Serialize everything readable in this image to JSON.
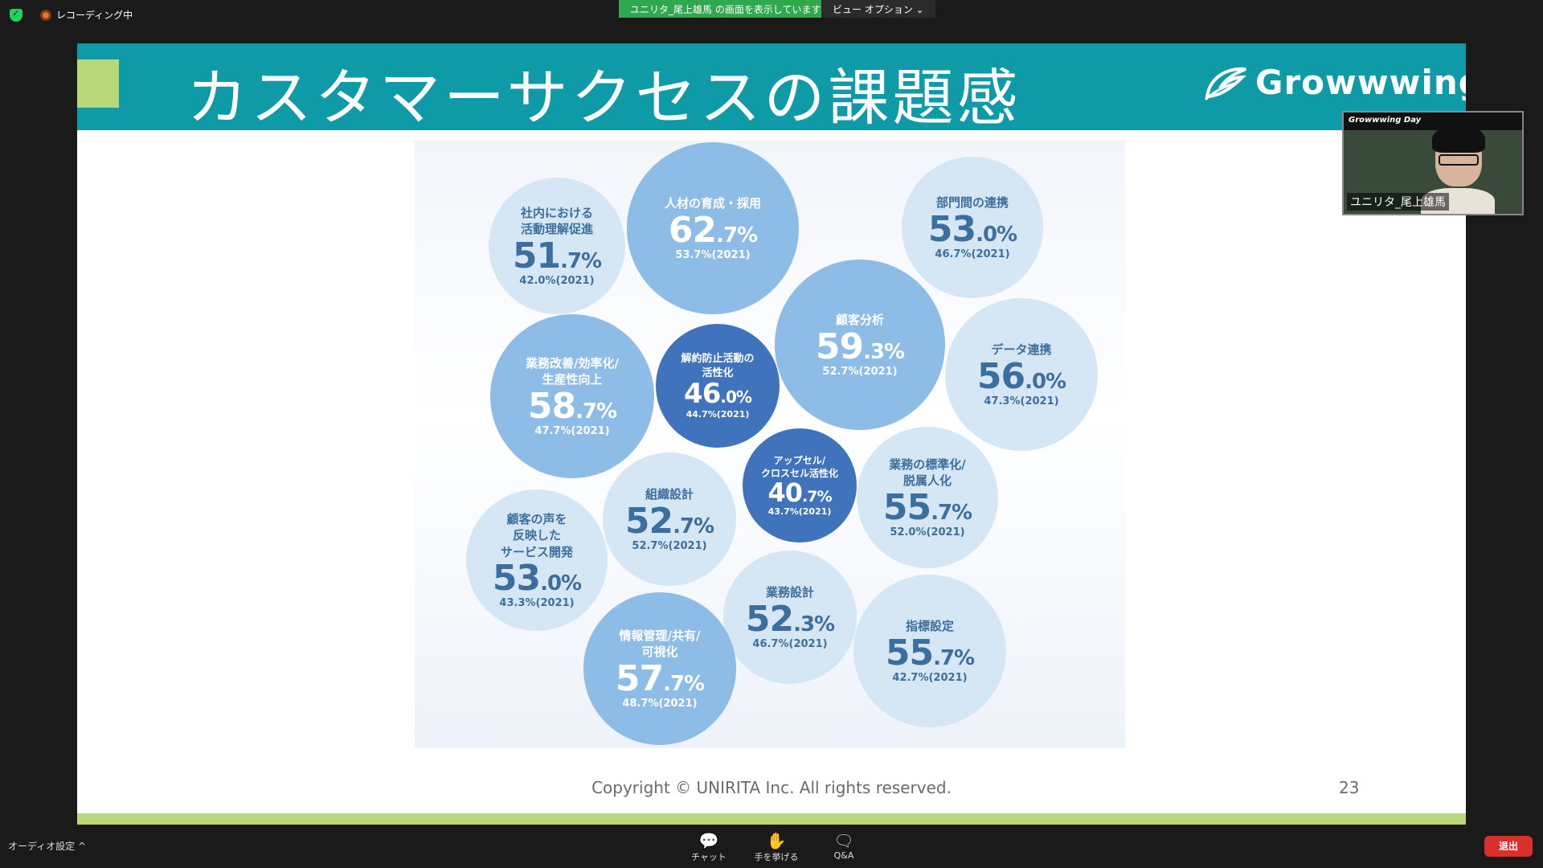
{
  "topbar": {
    "recording_label": "レコーディング中",
    "sharing_banner": "ユニリタ_尾上雄馬 の画面を表示しています",
    "view_options": "ビュー オプション ⌄"
  },
  "slide": {
    "title": "カスタマーサクセスの課題感",
    "logo_text": "Growwwing",
    "copyright": "Copyright © UNIRITA Inc. All rights reserved.",
    "page_number": "23",
    "colors": {
      "header": "#0f9aa8",
      "accent": "#b9d77b"
    }
  },
  "bubbles": [
    {
      "label": "社内における\n活動理解促進",
      "value_int": "51",
      "value_dec": ".7%",
      "prev": "42.0%(2021)"
    },
    {
      "label": "人材の育成・採用",
      "value_int": "62",
      "value_dec": ".7%",
      "prev": "53.7%(2021)"
    },
    {
      "label": "部門間の連携",
      "value_int": "53",
      "value_dec": ".0%",
      "prev": "46.7%(2021)"
    },
    {
      "label": "顧客分析",
      "value_int": "59",
      "value_dec": ".3%",
      "prev": "52.7%(2021)"
    },
    {
      "label": "データ連携",
      "value_int": "56",
      "value_dec": ".0%",
      "prev": "47.3%(2021)"
    },
    {
      "label": "業務改善/効率化/\n生産性向上",
      "value_int": "58",
      "value_dec": ".7%",
      "prev": "47.7%(2021)"
    },
    {
      "label": "解約防止活動の\n活性化",
      "value_int": "46",
      "value_dec": ".0%",
      "prev": "44.7%(2021)"
    },
    {
      "label": "アップセル/\nクロスセル活性化",
      "value_int": "40",
      "value_dec": ".7%",
      "prev": "43.7%(2021)"
    },
    {
      "label": "業務の標準化/\n脱属人化",
      "value_int": "55",
      "value_dec": ".7%",
      "prev": "52.0%(2021)"
    },
    {
      "label": "組織設計",
      "value_int": "52",
      "value_dec": ".7%",
      "prev": "52.7%(2021)"
    },
    {
      "label": "顧客の声を\n反映した\nサービス開発",
      "value_int": "53",
      "value_dec": ".0%",
      "prev": "43.3%(2021)"
    },
    {
      "label": "業務設計",
      "value_int": "52",
      "value_dec": ".3%",
      "prev": "46.7%(2021)"
    },
    {
      "label": "指標設定",
      "value_int": "55",
      "value_dec": ".7%",
      "prev": "42.7%(2021)"
    },
    {
      "label": "情報管理/共有/\n可視化",
      "value_int": "57",
      "value_dec": ".7%",
      "prev": "48.7%(2021)"
    }
  ],
  "video_tile": {
    "banner": "Growwwing Day",
    "participant_name": "ユニリタ_尾上雄馬"
  },
  "bottombar": {
    "audio_settings": "オーディオ設定 ^",
    "chat": "チャット",
    "raise_hand": "手を挙げる",
    "qa": "Q&A",
    "leave": "退出"
  }
}
